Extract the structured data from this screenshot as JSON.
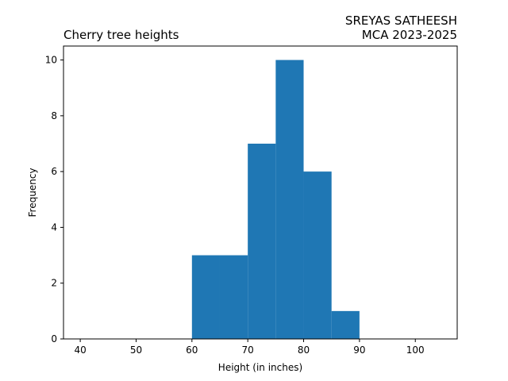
{
  "chart_data": {
    "type": "bar",
    "title": "Cherry tree heights",
    "title_right": [
      "SREYAS SATHEESH",
      "MCA 2023-2025"
    ],
    "xlabel": "Height (in inches)",
    "ylabel": "Frequency",
    "xlim": [
      37,
      107.5
    ],
    "ylim": [
      0,
      10.5
    ],
    "xticks": [
      40,
      50,
      60,
      70,
      80,
      90,
      100
    ],
    "yticks": [
      0,
      2,
      4,
      6,
      8,
      10
    ],
    "bin_width": 5,
    "bins": [
      {
        "start": 60,
        "end": 65,
        "count": 3
      },
      {
        "start": 65,
        "end": 70,
        "count": 3
      },
      {
        "start": 70,
        "end": 75,
        "count": 7
      },
      {
        "start": 75,
        "end": 80,
        "count": 10
      },
      {
        "start": 80,
        "end": 85,
        "count": 6
      },
      {
        "start": 85,
        "end": 90,
        "count": 1
      }
    ],
    "bar_color": "#1f77b4",
    "grid": false,
    "legend": "none"
  }
}
